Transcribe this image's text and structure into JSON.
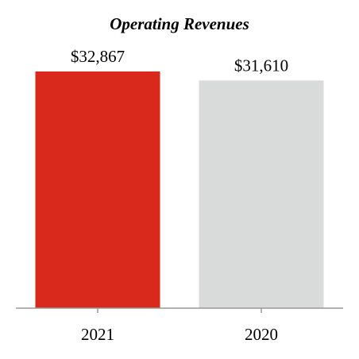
{
  "chart_data": {
    "type": "bar",
    "title": "Operating Revenues",
    "xlabel": "",
    "ylabel": "",
    "categories": [
      "2021",
      "2020"
    ],
    "values": [
      32867,
      31610
    ],
    "value_labels": [
      "$32,867",
      "$31,610"
    ],
    "bar_colors": [
      "#d9291c",
      "#d9dada"
    ],
    "ylim": [
      0,
      34000
    ],
    "grid": false,
    "legend": "none"
  },
  "colors": {
    "axis": "#999999",
    "text": "#000000",
    "background": "#ffffff"
  }
}
